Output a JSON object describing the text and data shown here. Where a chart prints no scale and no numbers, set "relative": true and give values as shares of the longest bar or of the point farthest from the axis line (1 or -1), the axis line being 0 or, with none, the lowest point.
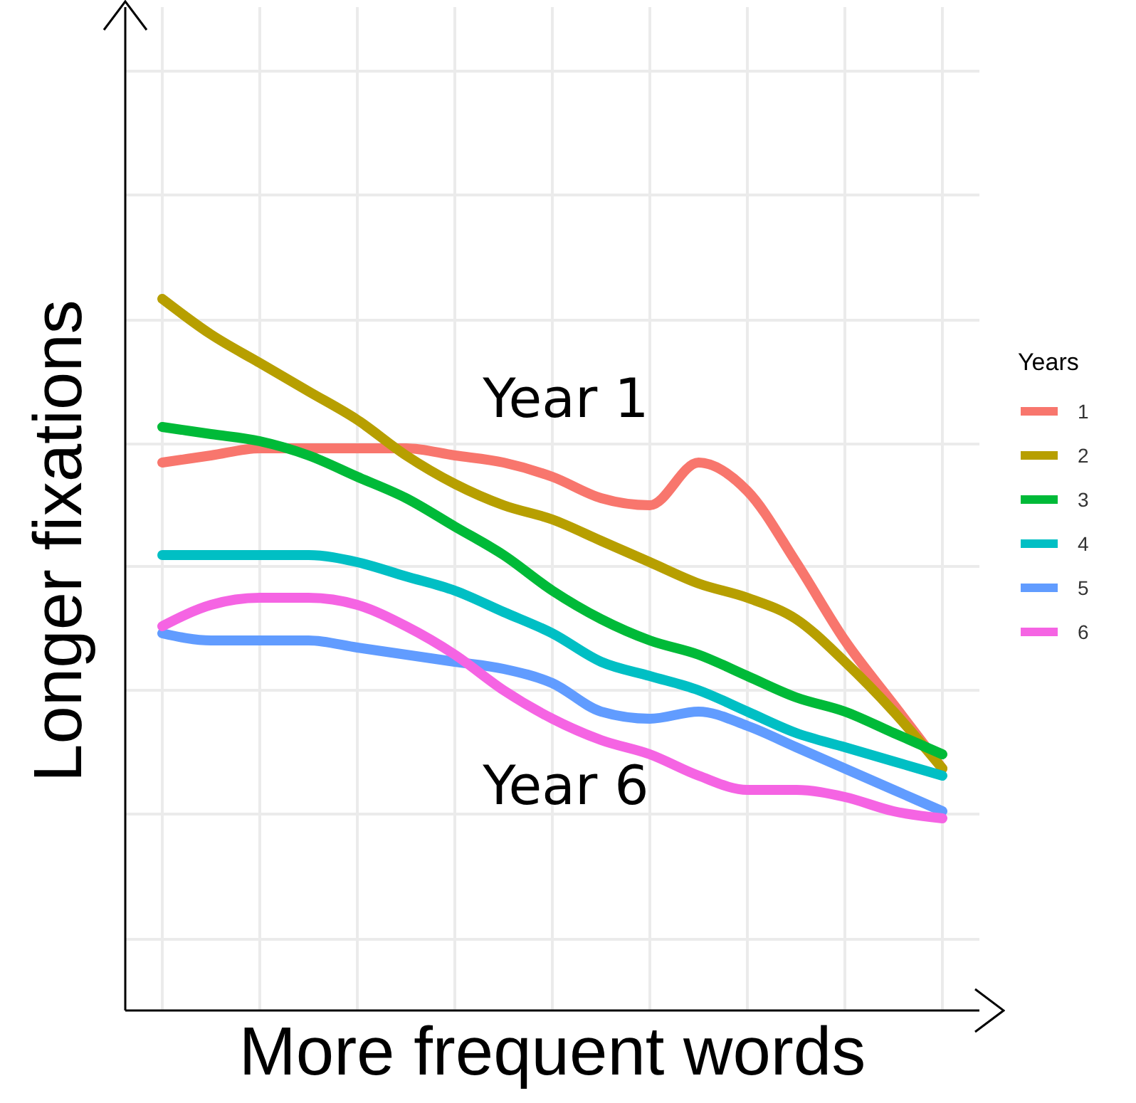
{
  "chart_data": {
    "type": "line",
    "relative": true,
    "xlabel": "More frequent words",
    "ylabel": "Longer fixations",
    "legend_title": "Years",
    "legend": "right",
    "grid": true,
    "marker": "none",
    "line_style": "solid",
    "annotations": [
      "Year 1",
      "Year 6"
    ],
    "categories": [
      null,
      null,
      null,
      null,
      null,
      null,
      null,
      null,
      null,
      null,
      null,
      null,
      null,
      null,
      null,
      null,
      null
    ],
    "series": [
      {
        "name": "1",
        "color": "#f8766d",
        "values": [
          0.77,
          0.78,
          0.79,
          0.79,
          0.79,
          0.79,
          0.78,
          0.77,
          0.75,
          0.72,
          0.71,
          0.77,
          0.73,
          0.63,
          0.52,
          0.43,
          0.34
        ]
      },
      {
        "name": "2",
        "color": "#b79f00",
        "values": [
          1,
          0.95,
          0.91,
          0.87,
          0.83,
          0.78,
          0.74,
          0.71,
          0.69,
          0.66,
          0.63,
          0.6,
          0.58,
          0.55,
          0.49,
          0.42,
          0.34
        ]
      },
      {
        "name": "3",
        "color": "#00ba38",
        "values": [
          0.82,
          0.81,
          0.8,
          0.78,
          0.75,
          0.72,
          0.68,
          0.64,
          0.59,
          0.55,
          0.52,
          0.5,
          0.47,
          0.44,
          0.42,
          0.39,
          0.36
        ]
      },
      {
        "name": "4",
        "color": "#00bfc4",
        "values": [
          0.64,
          0.64,
          0.64,
          0.64,
          0.63,
          0.61,
          0.59,
          0.56,
          0.53,
          0.49,
          0.47,
          0.45,
          0.42,
          0.39,
          0.37,
          0.35,
          0.33
        ]
      },
      {
        "name": "5",
        "color": "#619cff",
        "values": [
          0.53,
          0.52,
          0.52,
          0.52,
          0.51,
          0.5,
          0.49,
          0.48,
          0.46,
          0.42,
          0.41,
          0.42,
          0.4,
          0.37,
          0.34,
          0.31,
          0.28
        ]
      },
      {
        "name": "6",
        "color": "#f564e3",
        "values": [
          0.54,
          0.57,
          0.58,
          0.58,
          0.57,
          0.54,
          0.5,
          0.45,
          0.41,
          0.38,
          0.36,
          0.33,
          0.31,
          0.31,
          0.3,
          0.28,
          0.27
        ]
      }
    ]
  }
}
